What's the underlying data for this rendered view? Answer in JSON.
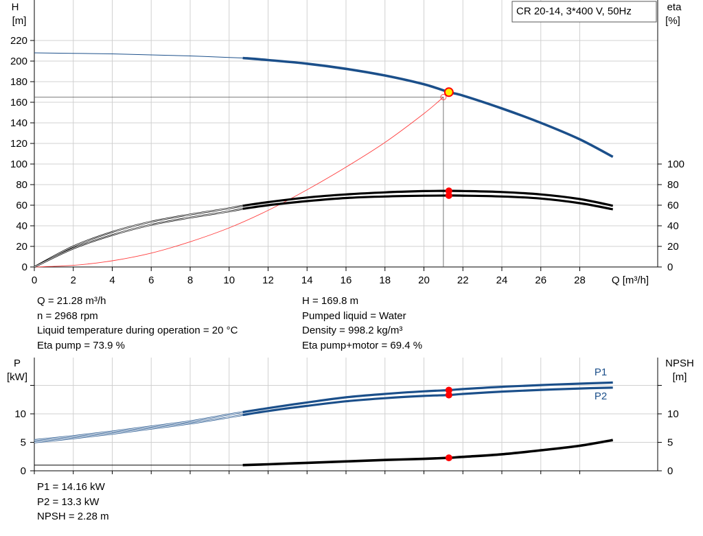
{
  "legend_box": "CR 20-14, 3*400 V, 50Hz",
  "colors": {
    "blue": "#1b4f8a",
    "black": "#000000",
    "red": "#ff0000",
    "duty_point_fill": "#ffee00",
    "grid": "#d0d0d0",
    "system_curve": "#ff3b3b"
  },
  "chart_data": [
    {
      "type": "line",
      "name": "head-efficiency",
      "ylabel_left": [
        "H",
        "[m]"
      ],
      "ylabel_right": [
        "eta",
        "[%]"
      ],
      "xlabel": "Q [m³/h]",
      "xlim": [
        0,
        32
      ],
      "ylim": [
        0,
        220
      ],
      "x_ticks": [
        0,
        2,
        4,
        6,
        8,
        10,
        12,
        14,
        16,
        18,
        20,
        22,
        24,
        26,
        28
      ],
      "y_ticks_left": [
        0,
        20,
        40,
        60,
        80,
        100,
        120,
        140,
        160,
        180,
        200,
        220
      ],
      "y_ticks_right": [
        0,
        20,
        40,
        60,
        80,
        100
      ],
      "operating_range": [
        10.7,
        29.7
      ],
      "grid": true,
      "series": [
        {
          "key": "H",
          "x": [
            0,
            2,
            4,
            6,
            8,
            10,
            10.7,
            12,
            14,
            16,
            18,
            20,
            21.28,
            22,
            24,
            26,
            28,
            29.7
          ],
          "values": [
            208,
            207.5,
            207,
            206,
            205,
            203.5,
            203,
            201,
            197.5,
            192.5,
            186,
            177.5,
            169.8,
            166.5,
            154,
            140,
            124,
            107
          ]
        },
        {
          "key": "eta_pump",
          "x": [
            0,
            2,
            4,
            6,
            8,
            10,
            10.7,
            12,
            14,
            16,
            18,
            20,
            21.28,
            22,
            24,
            26,
            28,
            29.7
          ],
          "values": [
            0,
            20,
            34,
            44,
            51,
            57,
            59.5,
            63,
            67.5,
            70.5,
            72.5,
            73.7,
            73.9,
            73.8,
            72.8,
            70.5,
            66,
            59.5
          ]
        },
        {
          "key": "eta_pump_motor",
          "x": [
            0,
            2,
            4,
            6,
            8,
            10,
            10.7,
            12,
            14,
            16,
            18,
            20,
            21.28,
            22,
            24,
            26,
            28,
            29.7
          ],
          "values": [
            0,
            18,
            31,
            41,
            48,
            54,
            56.5,
            60,
            64,
            67,
            68.5,
            69.2,
            69.4,
            69.3,
            68.5,
            66.5,
            62,
            56
          ]
        },
        {
          "key": "system_curve",
          "x": [
            0,
            2,
            4,
            6,
            8,
            10,
            12,
            14,
            16,
            18,
            20,
            21
          ],
          "values": [
            0,
            1.6,
            6,
            13.5,
            24.5,
            38,
            55,
            75,
            97,
            121,
            149,
            165
          ]
        }
      ],
      "duty_point": {
        "Q": 21.28,
        "H": 169.8,
        "eta_pump": 73.9,
        "eta_pump_motor": 69.4
      },
      "reference_point": {
        "Q": 21,
        "H": 165
      }
    },
    {
      "type": "line",
      "name": "power-npsh",
      "ylabel_left": [
        "P",
        "[kW]"
      ],
      "ylabel_right": [
        "NPSH",
        "[m]"
      ],
      "xlim": [
        0,
        32
      ],
      "ylim": [
        0,
        17
      ],
      "y_ticks_left": [
        0,
        5,
        10
      ],
      "y_ticks_right": [
        0,
        5,
        10
      ],
      "operating_range": [
        10.7,
        29.7
      ],
      "grid": true,
      "series": [
        {
          "key": "P1",
          "name": "P1",
          "x": [
            0,
            2,
            4,
            6,
            8,
            10,
            10.7,
            12,
            14,
            16,
            18,
            20,
            21.28,
            22,
            24,
            26,
            28,
            29.7
          ],
          "values": [
            5.4,
            6.1,
            6.9,
            7.8,
            8.7,
            9.9,
            10.3,
            11,
            12,
            12.9,
            13.5,
            13.95,
            14.16,
            14.35,
            14.75,
            15.05,
            15.3,
            15.5
          ]
        },
        {
          "key": "P2",
          "name": "P2",
          "x": [
            0,
            2,
            4,
            6,
            8,
            10,
            10.7,
            12,
            14,
            16,
            18,
            20,
            21.28,
            22,
            24,
            26,
            28,
            29.7
          ],
          "values": [
            5.0,
            5.7,
            6.5,
            7.4,
            8.3,
            9.4,
            9.8,
            10.5,
            11.4,
            12.2,
            12.75,
            13.15,
            13.3,
            13.5,
            13.9,
            14.2,
            14.45,
            14.6
          ]
        },
        {
          "key": "NPSH",
          "x": [
            0,
            2,
            4,
            6,
            8,
            10,
            10.7,
            12,
            14,
            16,
            18,
            20,
            21.28,
            22,
            24,
            26,
            28,
            29.7
          ],
          "values": [
            1.0,
            1.0,
            1.0,
            1.0,
            1.0,
            1.0,
            1.0,
            1.15,
            1.4,
            1.65,
            1.9,
            2.1,
            2.28,
            2.45,
            2.9,
            3.6,
            4.4,
            5.4
          ]
        }
      ],
      "duty_point": {
        "Q": 21.28,
        "P1": 14.16,
        "P2": 13.3,
        "NPSH": 2.28
      }
    }
  ],
  "info_top_left": [
    "Q = 21.28 m³/h",
    "n = 2968 rpm",
    "Liquid temperature during operation = 20 °C",
    "Eta pump = 73.9 %"
  ],
  "info_top_right": [
    "H = 169.8 m",
    "Pumped liquid = Water",
    "Density = 998.2 kg/m³",
    "Eta pump+motor = 69.4 %"
  ],
  "info_bottom": [
    "P1 = 14.16 kW",
    "P2 = 13.3 kW",
    "NPSH = 2.28 m"
  ]
}
